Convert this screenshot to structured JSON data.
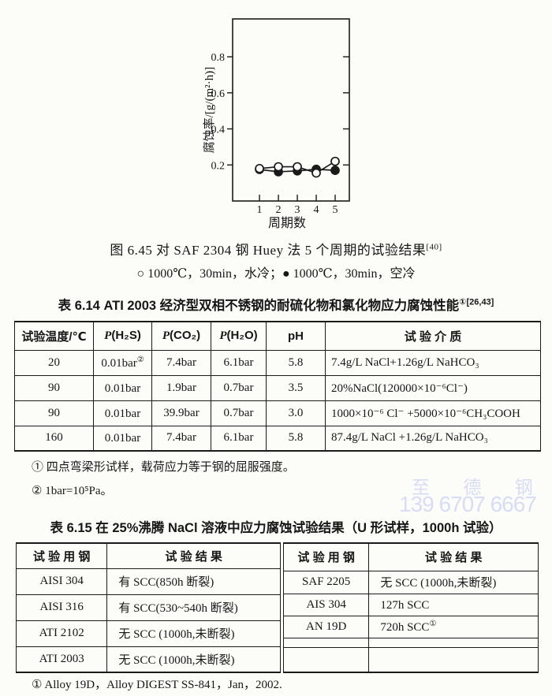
{
  "figure": {
    "caption": "图 6.45  对 SAF 2304 钢 Huey 法 5 个周期的试验结果",
    "caption_ref": "[40]",
    "legend": "○ 1000℃，30min，水冷；● 1000℃，30min，空冷"
  },
  "chart_data": {
    "type": "line",
    "x": [
      1,
      2,
      3,
      4,
      5
    ],
    "xlabel": "周期数",
    "ylabel": "腐蚀率/[g/(m²·h)]",
    "yticks": [
      0.2,
      0.4,
      0.6,
      0.8
    ],
    "ylim": [
      0,
      1.01
    ],
    "xlim": [
      -0.42,
      5.75
    ],
    "grid": false,
    "series": [
      {
        "name": "1000℃，30min，水冷",
        "marker": "open-circle",
        "values": [
          0.18,
          0.19,
          0.19,
          0.155,
          0.22
        ]
      },
      {
        "name": "1000℃，30min，空冷",
        "marker": "filled-circle",
        "values": [
          0.175,
          0.162,
          0.167,
          0.176,
          0.17
        ]
      }
    ]
  },
  "table614": {
    "title": "表 6.14  ATI 2003 经济型双相不锈钢的耐硫化物和氯化物应力腐蚀性能",
    "title_ref": "①[26,43]",
    "header": {
      "temp": "试验温度/℃",
      "p": "P",
      "h2s": "(H₂S)",
      "co2": "(CO₂)",
      "h2o": "(H₂O)",
      "ph": "pH",
      "medium": "试 验 介 质"
    },
    "rows": [
      {
        "temp": "20",
        "h2s": "0.01bar",
        "h2s_sup": "②",
        "co2": "7.4bar",
        "h2o": "6.1bar",
        "ph": "5.8",
        "medium": "7.4g/L NaCl+1.26g/L NaHCO₃"
      },
      {
        "temp": "90",
        "h2s": "0.01bar",
        "h2s_sup": "",
        "co2": "1.9bar",
        "h2o": "0.7bar",
        "ph": "3.5",
        "medium": "20%NaCl(120000×10⁻⁶Cl⁻)"
      },
      {
        "temp": "90",
        "h2s": "0.01bar",
        "h2s_sup": "",
        "co2": "39.9bar",
        "h2o": "0.7bar",
        "ph": "3.0",
        "medium": "1000×10⁻⁶ Cl⁻ +5000×10⁻⁶CH₃COOH"
      },
      {
        "temp": "160",
        "h2s": "0.01bar",
        "h2s_sup": "",
        "co2": "7.4bar",
        "h2o": "6.1bar",
        "ph": "5.8",
        "medium": "87.4g/L NaCl +1.26g/L NaHCO₃"
      }
    ],
    "footnote1": "① 四点弯梁形试样，载荷应力等于钢的屈服强度。",
    "footnote2": "② 1bar=10⁵Pa。"
  },
  "watermark": {
    "line1": "至 德 钢 业",
    "line2": "139 6707 6667",
    "color": "#d8dcf4"
  },
  "table615": {
    "title": "表 6.15  在 25%沸腾 NaCl 溶液中应力腐蚀试验结果（U 形试样，1000h 试验）",
    "header_steel": "试 验 用 钢",
    "header_result": "试 验 结 果",
    "left_rows": [
      {
        "steel": "AISI 304",
        "result": "有 SCC(850h 断裂)"
      },
      {
        "steel": "AISI 316",
        "result": "有 SCC(530~540h 断裂)"
      },
      {
        "steel": "ATI 2102",
        "result": "无 SCC (1000h,未断裂)"
      },
      {
        "steel": "ATI 2003",
        "result": "无 SCC (1000h,未断裂)"
      }
    ],
    "right_rows": [
      {
        "steel": "SAF 2205",
        "result": "无 SCC (1000h,未断裂)",
        "result_sup": ""
      },
      {
        "steel": "AIS 304",
        "result": "127h SCC",
        "result_sup": ""
      },
      {
        "steel": "AN 19D",
        "result": "720h SCC",
        "result_sup": "①"
      }
    ],
    "footnote": "① Alloy 19D，Alloy DIGEST SS-841，Jan，2002."
  }
}
